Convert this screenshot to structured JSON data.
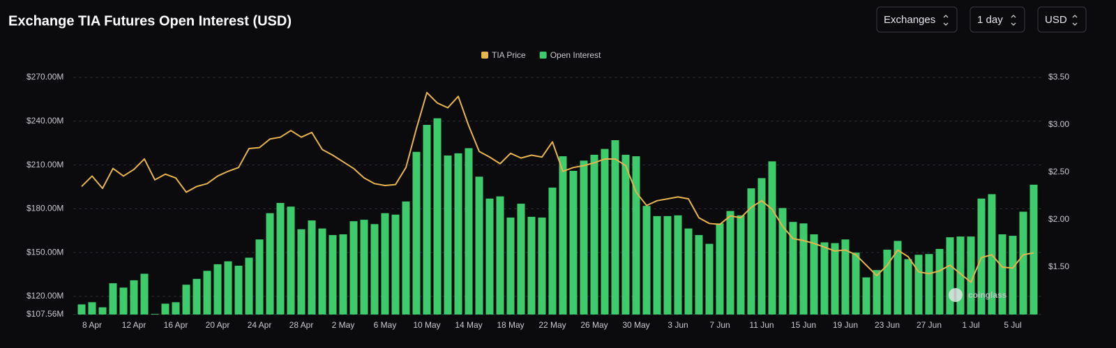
{
  "chart_data": {
    "type": "bar_line",
    "title": "Exchange TIA Futures Open Interest (USD)",
    "controls": [
      "Exchanges",
      "1 day",
      "USD"
    ],
    "watermark": "coinglass",
    "legend_position": "top",
    "categories": [
      null,
      "8 Apr",
      null,
      null,
      null,
      "12 Apr",
      null,
      null,
      null,
      "16 Apr",
      null,
      null,
      null,
      "20 Apr",
      null,
      null,
      null,
      "24 Apr",
      null,
      null,
      null,
      "28 Apr",
      null,
      null,
      null,
      "2 May",
      null,
      null,
      null,
      "6 May",
      null,
      null,
      null,
      "10 May",
      null,
      null,
      null,
      "14 May",
      null,
      null,
      null,
      "18 May",
      null,
      null,
      null,
      "22 May",
      null,
      null,
      null,
      "26 May",
      null,
      null,
      null,
      "30 May",
      null,
      null,
      null,
      "3 Jun",
      null,
      null,
      null,
      "7 Jun",
      null,
      null,
      null,
      "11 Jun",
      null,
      null,
      null,
      "15 Jun",
      null,
      null,
      null,
      "19 Jun",
      null,
      null,
      null,
      "23 Jun",
      null,
      null,
      null,
      "27 Jun",
      null,
      null,
      null,
      "1 Jul",
      null,
      null,
      null,
      "5 Jul",
      null,
      null
    ],
    "series": [
      {
        "name": "TIA Price",
        "color": "#e8b44c",
        "axis": "y2",
        "kind": "line",
        "values": [
          2.35,
          2.46,
          2.33,
          2.54,
          2.46,
          2.53,
          2.64,
          2.42,
          2.48,
          2.44,
          2.29,
          2.35,
          2.38,
          2.46,
          2.51,
          2.55,
          2.75,
          2.76,
          2.85,
          2.87,
          2.94,
          2.87,
          2.92,
          2.74,
          2.68,
          2.61,
          2.54,
          2.44,
          2.38,
          2.36,
          2.37,
          2.55,
          2.96,
          3.34,
          3.23,
          3.18,
          3.3,
          2.99,
          2.72,
          2.66,
          2.59,
          2.7,
          2.65,
          2.68,
          2.66,
          2.82,
          2.51,
          2.55,
          2.57,
          2.6,
          2.64,
          2.64,
          2.57,
          2.29,
          2.15,
          2.2,
          2.22,
          2.24,
          2.22,
          2.02,
          1.96,
          1.95,
          2.04,
          2.02,
          2.13,
          2.2,
          2.11,
          1.93,
          1.8,
          1.78,
          1.75,
          1.71,
          1.67,
          1.68,
          1.63,
          1.52,
          1.41,
          1.52,
          1.68,
          1.61,
          1.45,
          1.43,
          1.46,
          1.52,
          1.43,
          1.34,
          1.6,
          1.63,
          1.5,
          1.49,
          1.63,
          1.65
        ]
      },
      {
        "name": "Open Interest",
        "color": "#3ecb6c",
        "kind": "bar",
        "values": [
          114.5,
          116,
          112.5,
          129,
          126,
          131,
          135.5,
          108,
          115,
          116,
          128,
          132,
          137.5,
          142,
          144,
          141,
          146.5,
          159,
          177,
          184,
          181.5,
          166,
          172,
          166.5,
          162,
          162.5,
          171.5,
          172.5,
          169.5,
          177,
          176,
          185,
          219,
          237.5,
          242,
          216.5,
          218,
          221.5,
          202,
          187,
          188.5,
          174,
          183.5,
          174.5,
          174,
          194.5,
          216,
          206,
          213,
          217,
          221,
          227,
          217,
          216,
          182,
          175,
          175,
          175.5,
          166.5,
          162,
          156,
          170,
          178.5,
          175.5,
          194,
          201,
          212.5,
          180.5,
          171,
          170,
          162.5,
          157,
          156.5,
          159,
          150,
          133,
          138,
          152,
          158,
          145.5,
          148.5,
          149,
          152.5,
          160.5,
          161,
          161,
          187,
          190,
          162.5,
          161.5,
          178,
          196.5
        ]
      }
    ],
    "ylim": [
      107.56,
      270
    ],
    "yticks": [
      {
        "value": 270,
        "label": "$270.00M"
      },
      {
        "value": 240,
        "label": "$240.00M"
      },
      {
        "value": 210,
        "label": "$210.00M"
      },
      {
        "value": 180,
        "label": "$180.00M"
      },
      {
        "value": 150,
        "label": "$150.00M"
      },
      {
        "value": 120,
        "label": "$120.00M"
      },
      {
        "value": 107.56,
        "label": "$107.56M"
      }
    ],
    "y2lim": [
      1.0,
      3.5
    ],
    "y2ticks": [
      {
        "value": 3.5,
        "label": "$3.50"
      },
      {
        "value": 3.0,
        "label": "$3.00"
      },
      {
        "value": 2.5,
        "label": "$2.50"
      },
      {
        "value": 2.0,
        "label": "$2.00"
      },
      {
        "value": 1.5,
        "label": "$1.50"
      }
    ],
    "grid": true
  }
}
